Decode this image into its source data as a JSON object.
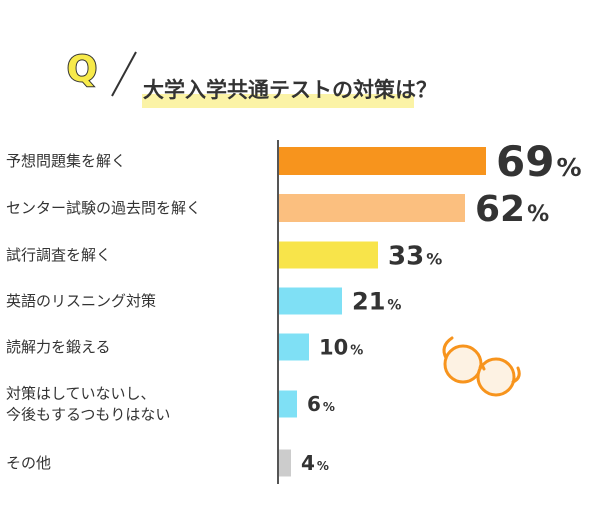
{
  "header": {
    "q_mark": "Q",
    "title": "大学入学共通テストの対策は？"
  },
  "colors": {
    "q_fill": "#f7ea4a",
    "highlight": "#fbf3a6",
    "axis": "#555555"
  },
  "chart_data": {
    "type": "bar",
    "orientation": "horizontal",
    "title": "大学入学共通テストの対策は？",
    "value_suffix": "%",
    "categories": [
      [
        "予想問題集を解く"
      ],
      [
        "センター試験の過去問を解く"
      ],
      [
        "試行調査を解く"
      ],
      [
        "英語のリスニング対策"
      ],
      [
        "読解力を鍛える"
      ],
      [
        "対策はしていないし、",
        "今後もするつもりはない"
      ],
      [
        "その他"
      ]
    ],
    "values": [
      69,
      62,
      33,
      21,
      10,
      6,
      4
    ],
    "bar_colors": [
      "#f7941d",
      "#fbbf7f",
      "#f8e44a",
      "#7fe0f5",
      "#7fe0f5",
      "#7fe0f5",
      "#cccccc"
    ],
    "xlim": [
      0,
      100
    ]
  },
  "decor": {
    "glasses": "glasses-illustration"
  }
}
